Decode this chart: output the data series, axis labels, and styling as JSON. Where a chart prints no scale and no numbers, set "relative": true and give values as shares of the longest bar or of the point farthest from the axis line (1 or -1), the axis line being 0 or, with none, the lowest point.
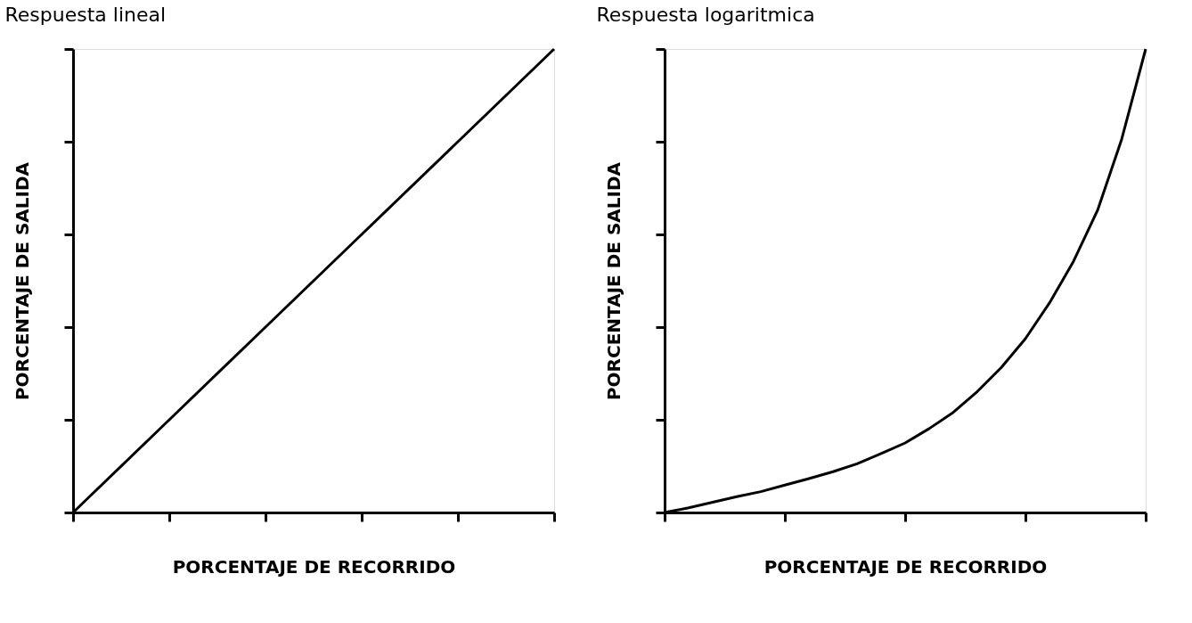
{
  "chart_data": [
    {
      "type": "line",
      "title": "Respuesta lineal",
      "xlabel": "PORCENTAJE DE RECORRIDO",
      "ylabel": "PORCENTAJE DE SALIDA",
      "relative": true,
      "tick_labels": false,
      "categories": [
        null,
        null,
        null,
        null,
        null,
        null
      ],
      "series": [
        {
          "color": "#000000",
          "values": [
            0,
            0.2,
            0.4,
            0.6,
            0.8,
            1
          ]
        }
      ]
    },
    {
      "type": "line",
      "title": "Respuesta logaritmica",
      "xlabel": "PORCENTAJE DE RECORRIDO",
      "ylabel": "PORCENTAJE DE SALIDA",
      "relative": true,
      "tick_labels": false,
      "categories": [
        null,
        null,
        null,
        null,
        null,
        null,
        null,
        null,
        null,
        null,
        null,
        null,
        null,
        null,
        null,
        null,
        null,
        null,
        null,
        null,
        null
      ],
      "series": [
        {
          "color": "#000000",
          "values": [
            0,
            0.01,
            0.022,
            0.034,
            0.045,
            0.059,
            0.073,
            0.088,
            0.105,
            0.127,
            0.15,
            0.181,
            0.216,
            0.261,
            0.313,
            0.375,
            0.452,
            0.542,
            0.652,
            0.805,
            1
          ]
        }
      ]
    }
  ]
}
